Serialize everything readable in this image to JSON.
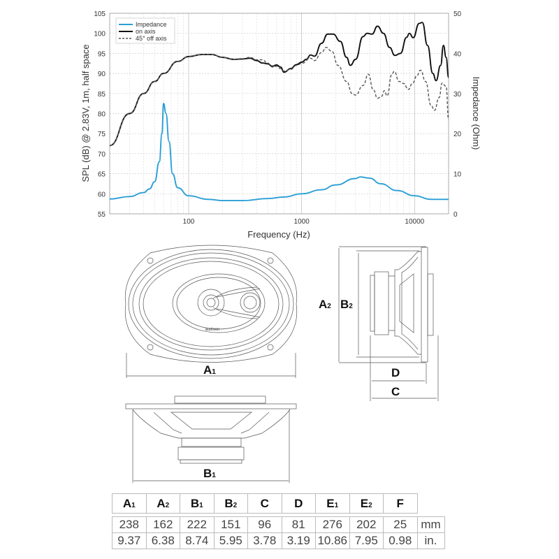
{
  "chart_data": {
    "type": "line",
    "title": "",
    "xlabel": "Frequency (Hz)",
    "ylabel": "SPL (dB) @ 2.83V, 1m, half space",
    "y2label": "Impedance (Ohm)",
    "xscale": "log",
    "xlim": [
      20,
      20000
    ],
    "ylim": [
      55,
      105
    ],
    "y2lim": [
      0,
      50
    ],
    "grid": true,
    "legend_position": "top-left",
    "x_ticks": [
      {
        "v": 100,
        "label": "100"
      },
      {
        "v": 1000,
        "label": "1000"
      },
      {
        "v": 10000,
        "label": "10000"
      }
    ],
    "y_ticks": [
      "55",
      "60",
      "65",
      "70",
      "75",
      "80",
      "85",
      "90",
      "95",
      "100",
      "105"
    ],
    "y2_ticks": [
      "0",
      "10",
      "20",
      "30",
      "40",
      "50"
    ],
    "series": [
      {
        "name": "Impedance",
        "axis": "right",
        "color": "#2a9fd6",
        "dash": false,
        "x": [
          20,
          30,
          40,
          45,
          50,
          55,
          58,
          60,
          63,
          67,
          72,
          80,
          100,
          150,
          200,
          300,
          500,
          700,
          1000,
          1500,
          2000,
          3000,
          3300,
          4000,
          5000,
          7000,
          10000,
          14000,
          20000
        ],
        "y": [
          3.7,
          4.3,
          5.3,
          6.2,
          8,
          13,
          20,
          27.5,
          25,
          18,
          10,
          6.5,
          4.5,
          3.6,
          3.3,
          3.3,
          3.8,
          4.2,
          5,
          6,
          7.2,
          8.8,
          9.2,
          8.9,
          7.5,
          5.8,
          4.5,
          3.6,
          3.6
        ]
      },
      {
        "name": "on axis",
        "axis": "left",
        "color": "#111111",
        "dash": false,
        "x": [
          20,
          30,
          40,
          50,
          60,
          80,
          100,
          130,
          160,
          200,
          250,
          300,
          350,
          400,
          450,
          500,
          550,
          600,
          650,
          700,
          800,
          900,
          1000,
          1100,
          1200,
          1300,
          1500,
          1700,
          1900,
          2200,
          2500,
          2700,
          3000,
          3500,
          3800,
          4200,
          4700,
          5300,
          6000,
          6700,
          7500,
          8500,
          9000,
          9700,
          11000,
          11700,
          13000,
          14500,
          15500,
          17000,
          18000,
          19000,
          20000
        ],
        "y": [
          72,
          80,
          85,
          88,
          90,
          93,
          94.2,
          94.7,
          94.7,
          94,
          93.5,
          93.6,
          93.8,
          93.2,
          92.6,
          92.4,
          91.8,
          92.1,
          91.6,
          90.3,
          91.2,
          92.2,
          92.8,
          93.5,
          94.6,
          94.3,
          97.5,
          99.8,
          99.8,
          98,
          94,
          92,
          93.5,
          99.2,
          100,
          99.8,
          101.8,
          100,
          96.5,
          94.5,
          95,
          99,
          100,
          98.9,
          102.5,
          102.7,
          97,
          90,
          88.2,
          92,
          97,
          94,
          89
        ]
      },
      {
        "name": "45° off axis",
        "axis": "left",
        "color": "#555555",
        "dash": true,
        "x": [
          20,
          30,
          40,
          50,
          60,
          80,
          100,
          130,
          160,
          200,
          250,
          300,
          350,
          400,
          450,
          500,
          550,
          600,
          650,
          700,
          800,
          900,
          1000,
          1200,
          1300,
          1500,
          1650,
          1850,
          2100,
          2500,
          2800,
          3000,
          3500,
          3900,
          4300,
          4700,
          5100,
          5400,
          5700,
          6300,
          6600,
          7300,
          8000,
          8800,
          9600,
          10500,
          11300,
          12500,
          14000,
          15000,
          16500,
          17500,
          19000,
          20000
        ],
        "y": [
          72,
          80,
          85,
          88,
          90,
          93,
          94.2,
          94.7,
          94.7,
          94,
          93.5,
          93.7,
          94,
          93.4,
          93.4,
          92.6,
          91.6,
          91.8,
          91.2,
          90.6,
          91,
          92,
          92.5,
          93.8,
          93.2,
          95.2,
          96.5,
          95.5,
          92,
          88,
          85,
          84.6,
          87,
          89.8,
          86,
          83.8,
          84.3,
          85.7,
          84.4,
          89.8,
          90.5,
          88,
          87.5,
          86,
          87.6,
          89.5,
          90.8,
          88,
          82,
          80.8,
          84,
          87.6,
          86.8,
          78.5
        ]
      }
    ]
  },
  "drawings": {
    "brand": "audison",
    "labels": {
      "A1": {
        "main": "A",
        "sub": "1"
      },
      "A2": {
        "main": "A",
        "sub": "2"
      },
      "B1": {
        "main": "B",
        "sub": "1"
      },
      "B2": {
        "main": "B",
        "sub": "2"
      },
      "C": {
        "main": "C"
      },
      "D": {
        "main": "D"
      }
    }
  },
  "dimensions_table": {
    "headers": [
      {
        "main": "A",
        "sub": "1"
      },
      {
        "main": "A",
        "sub": "2"
      },
      {
        "main": "B",
        "sub": "1"
      },
      {
        "main": "B",
        "sub": "2"
      },
      {
        "main": "C",
        "sub": ""
      },
      {
        "main": "D",
        "sub": ""
      },
      {
        "main": "E",
        "sub": "1"
      },
      {
        "main": "E",
        "sub": "2"
      },
      {
        "main": "F",
        "sub": ""
      }
    ],
    "rows": [
      {
        "unit": "mm",
        "values": [
          "238",
          "162",
          "222",
          "151",
          "96",
          "81",
          "276",
          "202",
          "25"
        ]
      },
      {
        "unit": "in.",
        "values": [
          "9.37",
          "6.38",
          "8.74",
          "5.95",
          "3.78",
          "3.19",
          "10.86",
          "7.95",
          "0.98"
        ]
      }
    ]
  }
}
